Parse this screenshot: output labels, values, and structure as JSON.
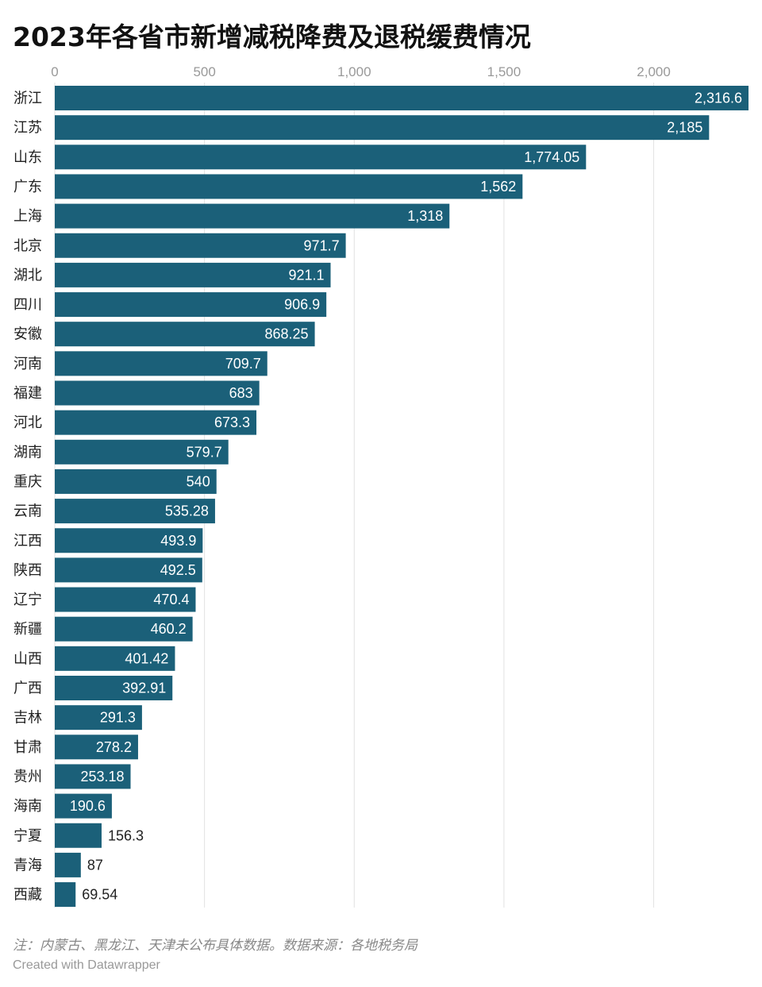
{
  "chart_data": {
    "type": "bar",
    "orientation": "horizontal",
    "title": "2023年各省市新增减税降费及退税缓费情况",
    "categories": [
      "浙江",
      "江苏",
      "山东",
      "广东",
      "上海",
      "北京",
      "湖北",
      "四川",
      "安徽",
      "河南",
      "福建",
      "河北",
      "湖南",
      "重庆",
      "云南",
      "江西",
      "陕西",
      "辽宁",
      "新疆",
      "山西",
      "广西",
      "吉林",
      "甘肃",
      "贵州",
      "海南",
      "宁夏",
      "青海",
      "西藏"
    ],
    "values": [
      2316.6,
      2185,
      1774.05,
      1562,
      1318,
      971.7,
      921.1,
      906.9,
      868.25,
      709.7,
      683,
      673.3,
      579.7,
      540,
      535.28,
      493.9,
      492.5,
      470.4,
      460.2,
      401.42,
      392.91,
      291.3,
      278.2,
      253.18,
      190.6,
      156.3,
      87,
      69.54
    ],
    "value_labels": [
      "2,316.6",
      "2,185",
      "1,774.05",
      "1,562",
      "1,318",
      "971.7",
      "921.1",
      "906.9",
      "868.25",
      "709.7",
      "683",
      "673.3",
      "579.7",
      "540",
      "535.28",
      "493.9",
      "492.5",
      "470.4",
      "460.2",
      "401.42",
      "392.91",
      "291.3",
      "278.2",
      "253.18",
      "190.6",
      "156.3",
      "87",
      "69.54"
    ],
    "xticks": [
      0,
      500,
      1000,
      1500,
      2000
    ],
    "xtick_labels": [
      "0",
      "500",
      "1,000",
      "1,500",
      "2,000"
    ],
    "xlim": [
      0,
      2316.6
    ],
    "grid": true,
    "bar_color": "#1b6079",
    "xlabel": "",
    "ylabel": ""
  },
  "footer": {
    "note": "注：内蒙古、黑龙江、天津未公布具体数据。数据来源：各地税务局",
    "credit": "Created with Datawrapper"
  }
}
